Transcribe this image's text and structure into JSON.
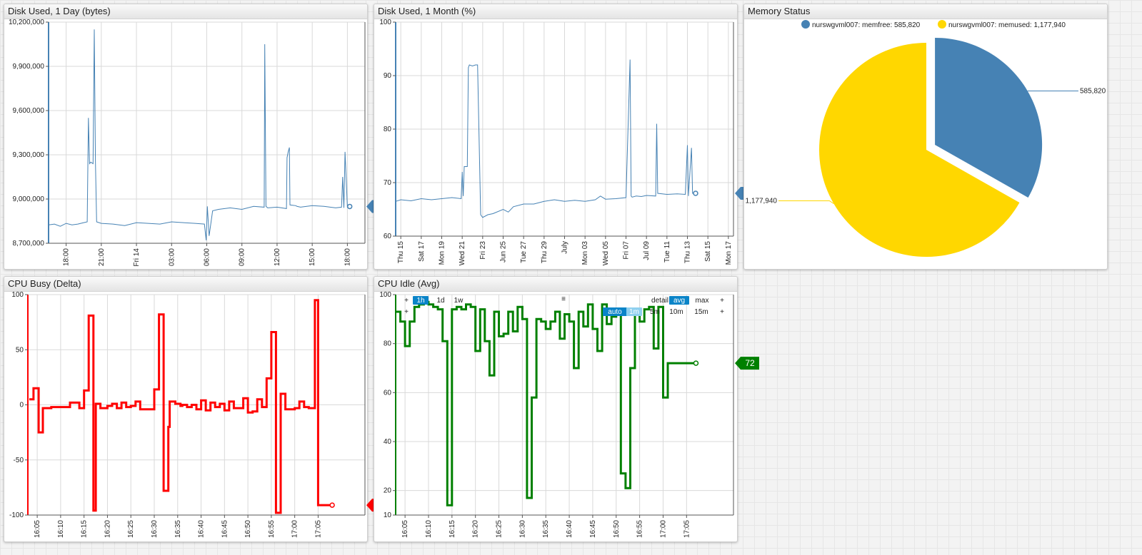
{
  "colors": {
    "blue": "#4682b4",
    "red": "#ff0000",
    "green": "#008000",
    "yellow": "#ffd700",
    "grid": "#d9d9d9",
    "toolbar_active": "#0a84c8",
    "toolbar_light": "#8fd0ef"
  },
  "widgets": [
    {
      "title": "Disk Used, 1 Day (bytes)",
      "current_value": "8,949,372",
      "chart_data": {
        "type": "line",
        "title": "Disk Used, 1 Day (bytes)",
        "ylim": [
          8700000,
          10200000
        ],
        "ytick_labels": [
          "8,700,000",
          "9,000,000",
          "9,300,000",
          "9,600,000",
          "9,900,000",
          "10,200,000"
        ],
        "xtick_labels": [
          "18:00",
          "21:00",
          "Fri 14",
          "03:00",
          "06:00",
          "09:00",
          "12:00",
          "15:00",
          "18:00"
        ],
        "xlim_hours": [
          16.5,
          43.5
        ],
        "series": [
          {
            "x": [
              16.5,
              17,
              17.5,
              18,
              18.5,
              19,
              19.5,
              19.8,
              19.9,
              20.0,
              20.1,
              20.3,
              20.4,
              20.5,
              20.6,
              21,
              22,
              23,
              24,
              25,
              26,
              27,
              28,
              29,
              29.8,
              29.95,
              30.05,
              30.2,
              30.5,
              31,
              32,
              33,
              34,
              34.9,
              34.95,
              35.05,
              35.2,
              36,
              36.8,
              36.85,
              36.95,
              37.05,
              37.1,
              37.6,
              37.7,
              38,
              39,
              40,
              41,
              41.5,
              41.6,
              41.7,
              41.8,
              42,
              42.2
            ],
            "y": [
              8825000,
              8830000,
              8815000,
              8835000,
              8825000,
              8830000,
              8840000,
              8845000,
              9550000,
              9240000,
              9250000,
              9240000,
              10150000,
              9260000,
              8845000,
              8835000,
              8830000,
              8820000,
              8840000,
              8835000,
              8830000,
              8845000,
              8840000,
              8835000,
              8830000,
              8720000,
              8950000,
              8750000,
              8920000,
              8930000,
              8940000,
              8930000,
              8950000,
              8945000,
              10050000,
              8950000,
              8940000,
              8945000,
              8935000,
              9280000,
              9320000,
              9350000,
              8960000,
              8955000,
              8950000,
              8945000,
              8955000,
              8950000,
              8940000,
              8945000,
              9150000,
              8940000,
              9320000,
              8945000,
              8949372
            ]
          }
        ]
      }
    },
    {
      "title": "Disk Used, 1 Month (%)",
      "current_value": "68",
      "chart_data": {
        "type": "line",
        "title": "Disk Used, 1 Month (%)",
        "ylim": [
          60,
          100
        ],
        "ytick_labels": [
          "60",
          "70",
          "80",
          "90",
          "100"
        ],
        "xtick_labels": [
          "Thu 15",
          "Sat 17",
          "Mon 19",
          "Wed 21",
          "Fri 23",
          "Jun 25",
          "Tue 27",
          "Thu 29",
          "July",
          "Mon 03",
          "Wed 05",
          "Fri 07",
          "Jul 09",
          "Tue 11",
          "Thu 13",
          "Sat 15",
          "Mon 17"
        ],
        "xlim_days": [
          14.5,
          47.5
        ],
        "series": [
          {
            "x": [
              14.5,
              15,
              16,
              17,
              18,
              19,
              20,
              20.9,
              21,
              21.1,
              21.2,
              21.5,
              21.6,
              21.7,
              22,
              22.3,
              22.5,
              22.8,
              23,
              23.5,
              24,
              25,
              25.5,
              26,
              27,
              28,
              29,
              30,
              31,
              32,
              33,
              34,
              34.5,
              35,
              36,
              37,
              37.4,
              37.5,
              37.6,
              38,
              38.5,
              39,
              39.9,
              40,
              40.1,
              41,
              42,
              42.8,
              43,
              43.1,
              43.4,
              43.5,
              43.8
            ],
            "y": [
              66.5,
              66.8,
              66.6,
              67,
              66.8,
              67,
              67.2,
              67,
              72,
              67.5,
              73,
              73,
              91.5,
              92,
              91.8,
              92,
              92,
              64,
              63.5,
              64,
              64.2,
              65,
              64.5,
              65.5,
              66,
              66,
              66.5,
              66.8,
              66.5,
              66.7,
              66.5,
              66.8,
              67.5,
              66.9,
              67,
              67.2,
              93,
              67.5,
              67.3,
              67.5,
              67.4,
              67.6,
              67.5,
              81,
              68,
              67.8,
              67.9,
              67.8,
              77,
              67.5,
              76.5,
              68,
              68
            ]
          }
        ]
      }
    },
    {
      "title": "Memory Status",
      "chart_data": {
        "type": "pie",
        "title": "Memory Status",
        "legend_position": "top",
        "slices": [
          {
            "label": "nurswgvml007: memfree: 585,820",
            "value": 585820,
            "value_label": "585,820",
            "color": "#4682b4",
            "exploded": true
          },
          {
            "label": "nurswgvml007: memused: 1,177,940",
            "value": 1177940,
            "value_label": "1,177,940",
            "color": "#ffd700",
            "exploded": false
          }
        ]
      }
    },
    {
      "title": "CPU Busy (Delta)",
      "current_value": "-91",
      "chart_data": {
        "type": "line",
        "title": "CPU Busy (Delta)",
        "ylim": [
          -100,
          100
        ],
        "ytick_labels": [
          "-100",
          "-50",
          "0",
          "50",
          "100"
        ],
        "xtick_labels": [
          "16:05",
          "16:10",
          "16:15",
          "16:20",
          "16:25",
          "16:30",
          "16:35",
          "16:40",
          "16:45",
          "16:50",
          "16:55",
          "17:00",
          "17:05"
        ],
        "xlim_minutes": [
          963,
          1035
        ],
        "step": true,
        "series": [
          {
            "x": [
              963.3,
              964.2,
              965.3,
              966.2,
              968,
              969,
              971,
              972,
              973,
              974,
              975,
              976,
              977,
              977.5,
              978.5,
              980,
              981,
              982,
              983,
              984,
              985,
              986,
              987,
              988,
              990,
              991,
              992,
              993,
              993.3,
              994.5,
              995.6,
              996,
              997,
              998,
              999,
              1000,
              1001,
              1002,
              1003,
              1004,
              1005,
              1006,
              1007,
              1008,
              1009,
              1010,
              1011,
              1012,
              1013,
              1014,
              1015,
              1016,
              1017,
              1018,
              1019,
              1020,
              1021,
              1022,
              1023,
              1024,
              1024.3,
              1025,
              1026,
              1027,
              1028
            ],
            "y": [
              5,
              15,
              -25,
              -3,
              -2,
              -2,
              -2,
              2,
              2,
              -3,
              13,
              81,
              -96,
              1,
              -3,
              -1,
              1,
              -3,
              2,
              -2,
              -1,
              3,
              -4,
              -4,
              14,
              82,
              -78,
              -20,
              3,
              1,
              -1,
              0,
              -2,
              0,
              -4,
              4,
              -5,
              2,
              -2,
              1,
              -5,
              3,
              -3,
              -3,
              6,
              -7,
              -6,
              5,
              -2,
              24,
              66,
              -98,
              10,
              -4,
              -4,
              -3,
              3,
              -2,
              -3,
              -3,
              95,
              -91,
              -91,
              -91,
              -91
            ]
          }
        ]
      }
    },
    {
      "title": "CPU Idle (Avg)",
      "current_value": "72",
      "toolbar": {
        "row1": [
          "+",
          "1h",
          "1d",
          "1w"
        ],
        "row1_right": [
          "detail",
          "avg",
          "max",
          "+"
        ],
        "row2": [
          "+"
        ],
        "row2_right": [
          "auto",
          "1m",
          "5m",
          "10m",
          "15m",
          "+"
        ],
        "menu": "≡"
      },
      "chart_data": {
        "type": "line",
        "title": "CPU Idle (Avg)",
        "ylim": [
          10,
          100
        ],
        "ytick_labels": [
          "10",
          "20",
          "40",
          "60",
          "80",
          "100"
        ],
        "xtick_labels": [
          "16:05",
          "16:10",
          "16:15",
          "16:20",
          "16:25",
          "16:30",
          "16:35",
          "16:40",
          "16:45",
          "16:50",
          "16:55",
          "17:00",
          "17:05"
        ],
        "xlim_minutes": [
          963,
          1035
        ],
        "step": true,
        "series": [
          {
            "x": [
              963,
              964,
              965,
              966,
              967,
              968,
              969,
              970,
              971,
              972,
              973,
              974,
              975,
              976,
              977,
              978,
              979,
              980,
              981,
              982,
              983,
              984,
              985,
              986,
              987,
              988,
              989,
              990,
              991,
              992,
              993,
              994,
              995,
              996,
              997,
              998,
              999,
              1000,
              1001,
              1002,
              1003,
              1004,
              1005,
              1006,
              1007,
              1008,
              1009,
              1010,
              1011,
              1012,
              1013,
              1014,
              1015,
              1016,
              1017,
              1018,
              1019,
              1020,
              1021,
              1022,
              1023,
              1024,
              1025,
              1026,
              1027
            ],
            "y": [
              93,
              89,
              79,
              89,
              95,
              96,
              97,
              96,
              95,
              94,
              81,
              14,
              94,
              95,
              94,
              96,
              95,
              77,
              94,
              81,
              67,
              93,
              83,
              84,
              93,
              85,
              95,
              90,
              17,
              58,
              90,
              89,
              86,
              89,
              93,
              82,
              92,
              89,
              70,
              93,
              87,
              96,
              86,
              77,
              96,
              88,
              91,
              93,
              27,
              21,
              70,
              93,
              89,
              94,
              95,
              78,
              95,
              58,
              72,
              72,
              72,
              72,
              72,
              72,
              72
            ]
          }
        ]
      }
    }
  ]
}
